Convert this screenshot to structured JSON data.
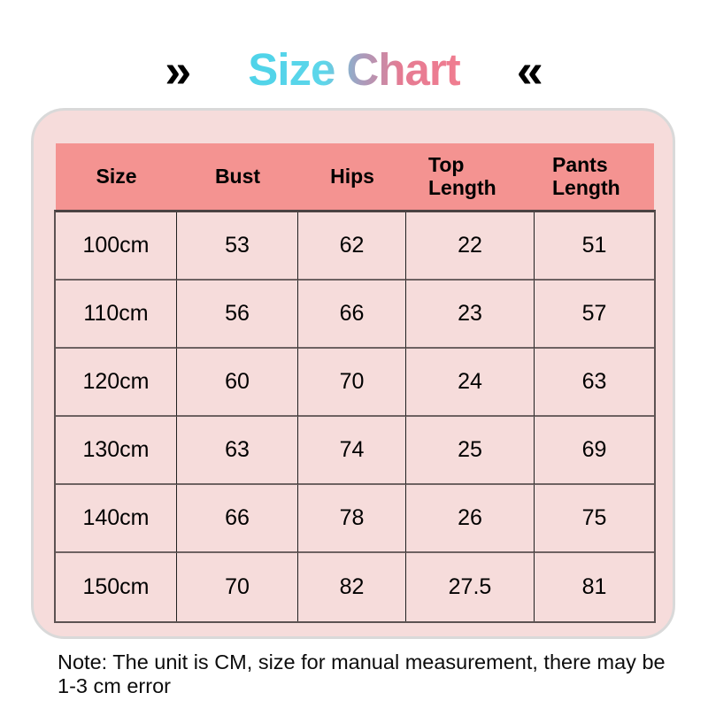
{
  "header": {
    "left_arrow": "»",
    "title": "Size Chart",
    "right_arrow": "«"
  },
  "chart_data": {
    "type": "table",
    "title": "Size Chart",
    "columns": [
      "Size",
      "Bust",
      "Hips",
      "Top Length",
      "Pants Length"
    ],
    "rows": [
      [
        "100cm",
        "53",
        "62",
        "22",
        "51"
      ],
      [
        "110cm",
        "56",
        "66",
        "23",
        "57"
      ],
      [
        "120cm",
        "60",
        "70",
        "24",
        "63"
      ],
      [
        "130cm",
        "63",
        "74",
        "25",
        "69"
      ],
      [
        "140cm",
        "66",
        "78",
        "26",
        "75"
      ],
      [
        "150cm",
        "70",
        "82",
        "27.5",
        "81"
      ]
    ],
    "unit": "cm"
  },
  "note": {
    "text": "Note: The unit is CM, size for manual measurement, there may be 1-3 cm error"
  },
  "colors": {
    "panel_bg": "#f6dcdb",
    "panel_border": "#d9d9d9",
    "header_row_bg": "#f49391",
    "title_gradient_start": "#4ed3e9",
    "title_gradient_mid": "#a79dbd",
    "title_gradient_end": "#f07d90",
    "arrow_color": "#000000"
  }
}
